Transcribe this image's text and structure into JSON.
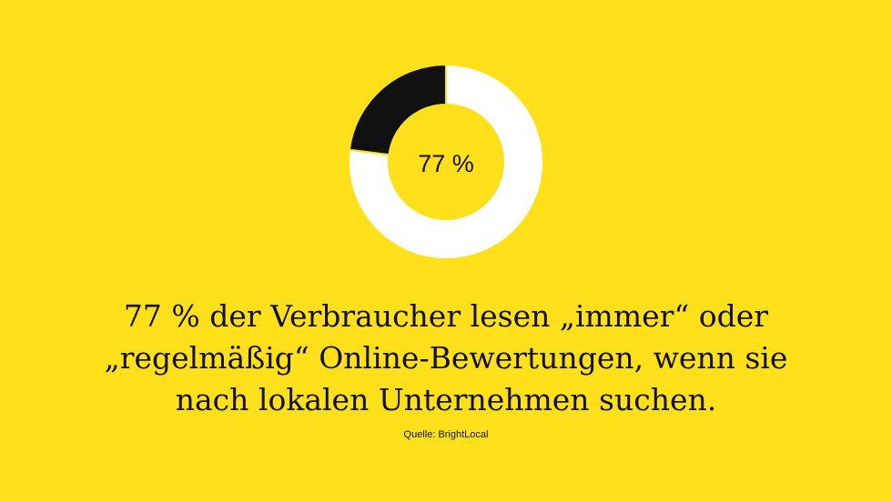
{
  "chart_data": {
    "type": "pie",
    "donut": true,
    "center_label": "77 %",
    "slices": [
      {
        "value": 77,
        "color": "#FFFFFF"
      },
      {
        "value": 23,
        "color": "#111111"
      }
    ],
    "background": "#FFE01B"
  },
  "headline": {
    "lines": [
      "77 % der Verbraucher lesen „immer“ oder",
      "„regelmäßig“ Online-Bewertungen, wenn sie",
      "nach lokalen Unternehmen suchen."
    ]
  },
  "source": "Quelle: BrightLocal"
}
